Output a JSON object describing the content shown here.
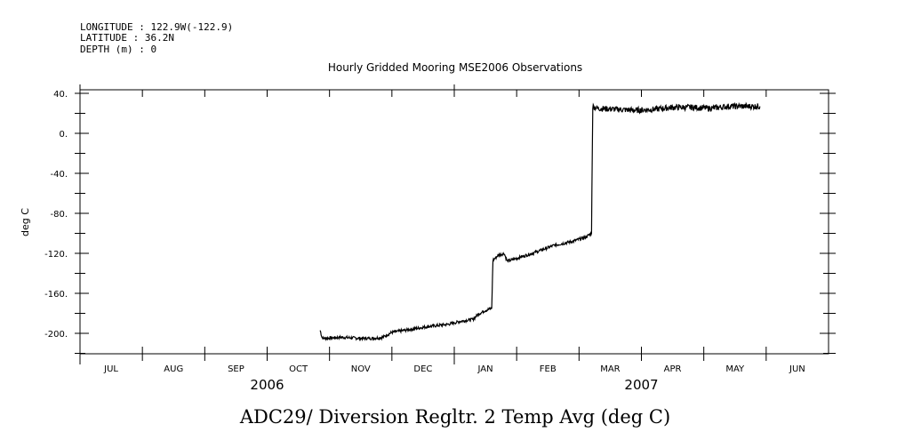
{
  "meta": {
    "longitude": "LONGITUDE : 122.9W(-122.9)",
    "latitude": "LATITUDE : 36.2N",
    "depth": "DEPTH (m) : 0"
  },
  "caption": "ADC29/ Diversion Regltr. 2 Temp Avg (deg C)",
  "chart_data": {
    "type": "line",
    "title": "Hourly Gridded Mooring MSE2006 Observations",
    "ylabel": "deg C",
    "xlabel": "",
    "ylim": [
      -220,
      45
    ],
    "yticks": [
      40,
      0,
      -40,
      -80,
      -120,
      -160,
      -200
    ],
    "ytick_labels": [
      "40.",
      "0.",
      "-40.",
      "-80.",
      "-120.",
      "-160.",
      "-200."
    ],
    "xlim": [
      0,
      12
    ],
    "months": [
      "JUL",
      "AUG",
      "SEP",
      "OCT",
      "NOV",
      "DEC",
      "JAN",
      "FEB",
      "MAR",
      "APR",
      "MAY",
      "JUN"
    ],
    "years": [
      {
        "label": "2006",
        "at": 3
      },
      {
        "label": "2007",
        "at": 9
      }
    ],
    "grid": false,
    "series": [
      {
        "name": "Diversion Regltr. 2 Temp Avg",
        "x": [
          3.85,
          3.88,
          3.9,
          4.2,
          4.5,
          4.7,
          4.85,
          5.0,
          5.3,
          5.6,
          5.9,
          6.1,
          6.3,
          6.35,
          6.38,
          6.5,
          6.6,
          6.62,
          6.7,
          6.8,
          6.85,
          7.0,
          7.3,
          7.6,
          7.9,
          8.1,
          8.2,
          8.22,
          8.3,
          8.6,
          8.9,
          9.2,
          9.5,
          9.8,
          10.1,
          10.4,
          10.7,
          10.9
        ],
        "y": [
          -197,
          -204,
          -205,
          -204,
          -205,
          -205,
          -204,
          -199,
          -196,
          -193,
          -191,
          -188,
          -186,
          -183,
          -181,
          -177,
          -175,
          -127,
          -122,
          -120,
          -128,
          -125,
          -119,
          -112,
          -108,
          -104,
          -100,
          27,
          25,
          24,
          23,
          24,
          26,
          26,
          25,
          27,
          27,
          27
        ]
      }
    ]
  }
}
